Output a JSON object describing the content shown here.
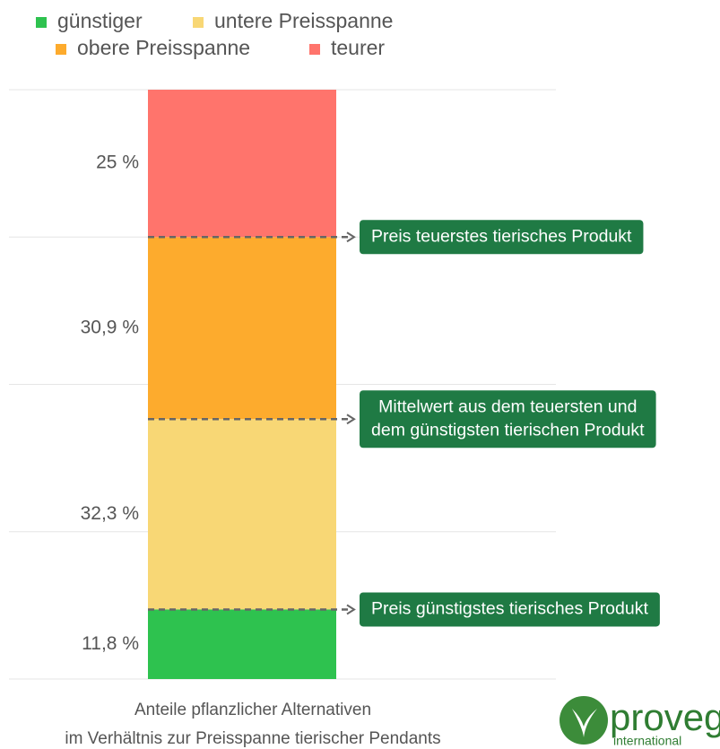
{
  "chart_data": {
    "type": "stacked_bar",
    "series": [
      {
        "name": "günstiger",
        "color": "#2ec24f",
        "values": [
          11.8
        ],
        "value_labels": [
          "11,8 %"
        ]
      },
      {
        "name": "untere Preisspanne",
        "color": "#f8d775",
        "values": [
          32.3
        ],
        "value_labels": [
          "32,3 %"
        ]
      },
      {
        "name": "obere Preisspanne",
        "color": "#fdab2d",
        "values": [
          30.9
        ],
        "value_labels": [
          "30,9 %"
        ]
      },
      {
        "name": "teurer",
        "color": "#ff746c",
        "values": [
          25
        ],
        "value_labels": [
          "25 %"
        ]
      }
    ],
    "ylim": [
      0,
      100
    ],
    "yticks": [
      0,
      25,
      50,
      75,
      100
    ],
    "grid": true,
    "xlabel": [
      "Anteile pflanzlicher Alternativen",
      "im Verhältnis zur Preisspanne tierischer Pendants"
    ],
    "annotations": [
      {
        "lines": [
          "Preis günstigstes tierisches Produkt"
        ]
      },
      {
        "lines": [
          "Mittelwert aus dem teuersten und",
          "dem günstigsten tierischen Produkt"
        ]
      },
      {
        "lines": [
          "Preis teuerstes tierisches Produkt"
        ]
      }
    ],
    "logo": {
      "name": "proveg",
      "subtitle": "international"
    }
  }
}
